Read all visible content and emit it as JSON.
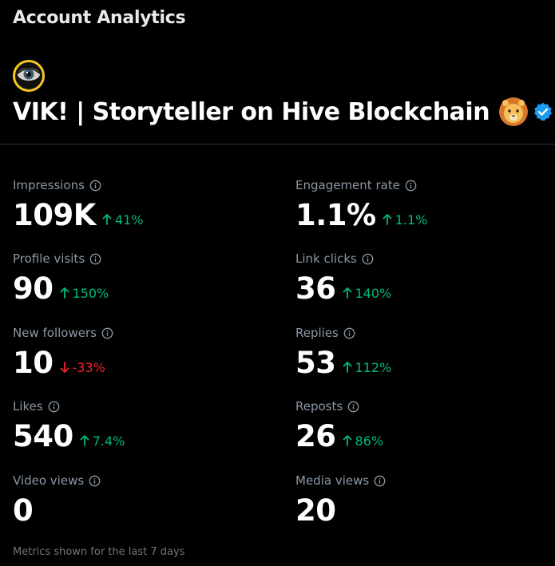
{
  "header": {
    "title": "Account Analytics"
  },
  "account": {
    "name": "VIK! | Storyteller on Hive Blockchain",
    "avatar_icon": "eye-icon",
    "emoji_icon": "lion-face-icon",
    "verified_icon": "verified-badge-icon"
  },
  "colors": {
    "up": "#00ba7c",
    "down": "#f4212e",
    "label": "#8b98a5",
    "verified": "#1d9bf0"
  },
  "metrics": [
    {
      "label": "Impressions",
      "value": "109K",
      "change": "41%",
      "direction": "up"
    },
    {
      "label": "Engagement rate",
      "value": "1.1%",
      "change": "1.1%",
      "direction": "up"
    },
    {
      "label": "Profile visits",
      "value": "90",
      "change": "150%",
      "direction": "up"
    },
    {
      "label": "Link clicks",
      "value": "36",
      "change": "140%",
      "direction": "up"
    },
    {
      "label": "New followers",
      "value": "10",
      "change": "-33%",
      "direction": "down"
    },
    {
      "label": "Replies",
      "value": "53",
      "change": "112%",
      "direction": "up"
    },
    {
      "label": "Likes",
      "value": "540",
      "change": "7.4%",
      "direction": "up"
    },
    {
      "label": "Reposts",
      "value": "26",
      "change": "86%",
      "direction": "up"
    },
    {
      "label": "Video views",
      "value": "0",
      "change": "",
      "direction": ""
    },
    {
      "label": "Media views",
      "value": "20",
      "change": "",
      "direction": ""
    }
  ],
  "footer": {
    "note": "Metrics shown for the last 7 days"
  }
}
